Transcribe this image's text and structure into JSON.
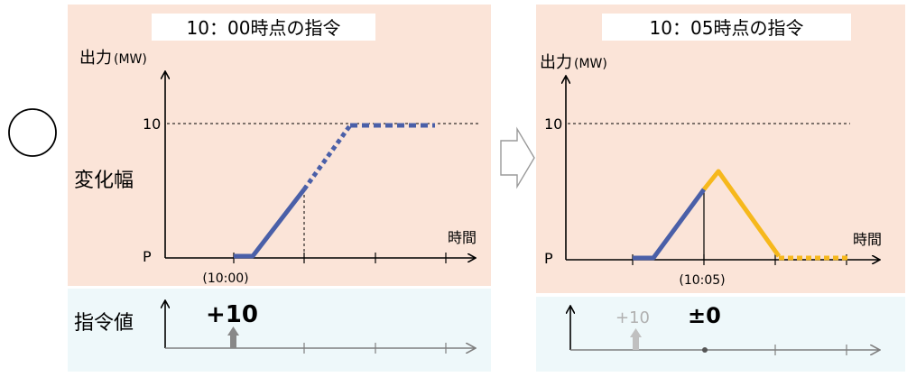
{
  "marker": "○",
  "colors": {
    "panel_top": "#fbe4d8",
    "panel_bottom": "#eef8fa",
    "title_box": "#ffffff",
    "blue": "#4a5fa8",
    "orange": "#f6b81c",
    "axis": "#000000",
    "axis_gray": "#7f7f7f",
    "arrow_light": "#b8b8b8",
    "arrow_mid": "#888888"
  },
  "left": {
    "title": "10：00時点の指令",
    "y_axis_label": "出力",
    "y_axis_unit": "(MW)",
    "y_tick_10": "10",
    "y_tick_p": "P",
    "x_axis_label": "時間",
    "x_tick_label": "(10:00)",
    "side_label": "変化幅",
    "command_label": "指令値",
    "command_value": "+10"
  },
  "right": {
    "title": "10：05時点の指令",
    "y_axis_label": "出力",
    "y_axis_unit": "(MW)",
    "y_tick_10": "10",
    "y_tick_p": "P",
    "x_axis_label": "時間",
    "x_tick_label": "(10:05)",
    "prev_command_value": "+10",
    "command_value": "±0"
  }
}
